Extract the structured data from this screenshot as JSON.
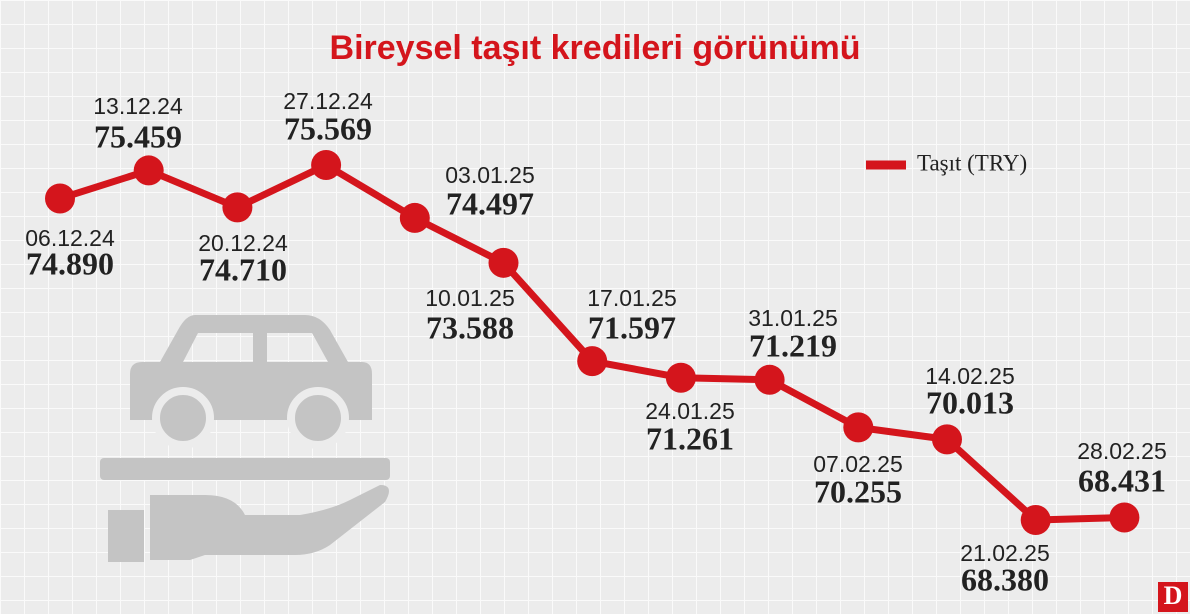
{
  "chart_data": {
    "type": "line",
    "title": "Bireysel taşıt kredileri görünümü",
    "categories": [
      "06.12.24",
      "13.12.24",
      "20.12.24",
      "27.12.24",
      "03.01.25",
      "10.01.25",
      "17.01.25",
      "24.01.25",
      "31.01.25",
      "07.02.25",
      "14.02.25",
      "21.02.25",
      "28.02.25"
    ],
    "series": [
      {
        "name": "Taşıt (TRY)",
        "color": "#d4151c",
        "values": [
          74.89,
          75.459,
          74.71,
          75.569,
          74.497,
          73.588,
          71.597,
          71.261,
          71.219,
          70.255,
          70.013,
          68.38,
          68.431
        ],
        "value_labels": [
          "74.890",
          "75.459",
          "74.710",
          "75.569",
          "74.497",
          "73.588",
          "71.597",
          "71.261",
          "71.219",
          "70.255",
          "70.013",
          "68.380",
          "68.431"
        ]
      }
    ],
    "legend": "top-right"
  },
  "logo": "D"
}
